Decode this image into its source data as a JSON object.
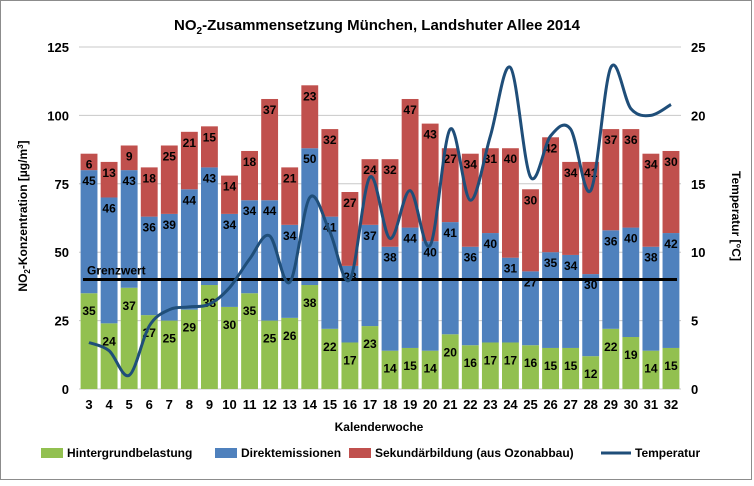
{
  "chart_data": {
    "type": "bar",
    "stacked": true,
    "title_main": "NO",
    "title_sub": "2",
    "title_rest": "-Zusammensetzung München, Landshuter Allee 2014",
    "xlabel": "Kalenderwoche",
    "ylabel_left_a": "NO",
    "ylabel_left_sub": "2",
    "ylabel_left_b": "-Konzentration [µg/m",
    "ylabel_left_sup": "3",
    "ylabel_left_c": "]",
    "ylabel_right": "Temperatur [°C]",
    "ylim_left": [
      0,
      125
    ],
    "ylim_right": [
      0,
      25
    ],
    "yticks_left": [
      "0",
      "25",
      "50",
      "75",
      "100",
      "125"
    ],
    "yticks_right": [
      "0",
      "5",
      "10",
      "15",
      "20",
      "25"
    ],
    "grid": true,
    "categories": [
      "3",
      "4",
      "5",
      "6",
      "7",
      "8",
      "9",
      "10",
      "11",
      "12",
      "13",
      "14",
      "15",
      "16",
      "17",
      "18",
      "19",
      "20",
      "21",
      "22",
      "23",
      "24",
      "25",
      "26",
      "27",
      "28",
      "29",
      "30",
      "31",
      "32"
    ],
    "series": [
      {
        "name": "Hintergrundbelastung",
        "color": "#92c050",
        "values": [
          35,
          24,
          37,
          27,
          25,
          29,
          38,
          30,
          35,
          25,
          26,
          38,
          22,
          17,
          23,
          14,
          15,
          14,
          20,
          16,
          17,
          17,
          16,
          15,
          15,
          12,
          22,
          19,
          14,
          15
        ]
      },
      {
        "name": "Direktemissionen",
        "color": "#4f81bd",
        "values": [
          45,
          46,
          43,
          36,
          39,
          44,
          43,
          34,
          34,
          44,
          34,
          50,
          41,
          28,
          37,
          38,
          44,
          40,
          41,
          36,
          40,
          31,
          27,
          35,
          34,
          30,
          36,
          40,
          38,
          42
        ]
      },
      {
        "name": "Sekundärbildung (aus Ozonabbau)",
        "color": "#c0504d",
        "values": [
          6,
          13,
          9,
          18,
          25,
          21,
          15,
          14,
          18,
          37,
          21,
          23,
          32,
          27,
          24,
          32,
          47,
          43,
          27,
          34,
          31,
          40,
          30,
          42,
          34,
          41,
          37,
          36,
          34,
          30
        ]
      }
    ],
    "line_series": {
      "name": "Temperatur",
      "axis": "right",
      "color": "#1f4e79",
      "values": [
        3.4,
        2.8,
        1.0,
        4.6,
        5.8,
        6.0,
        6.2,
        7.4,
        9.5,
        11.2,
        7.8,
        14.0,
        11.5,
        8.0,
        15.5,
        11.0,
        14.5,
        10.5,
        19.0,
        13.8,
        18.5,
        23.5,
        15.5,
        18.5,
        19.0,
        14.5,
        23.5,
        20.5,
        20.0,
        20.8
      ]
    },
    "threshold": {
      "label": "Grenzwert",
      "value": 40
    },
    "legend_position": "bottom"
  },
  "colors": {
    "background": "#ffffff",
    "grid": "#c8c8c8",
    "threshold": "#000000",
    "text": "#000000"
  }
}
